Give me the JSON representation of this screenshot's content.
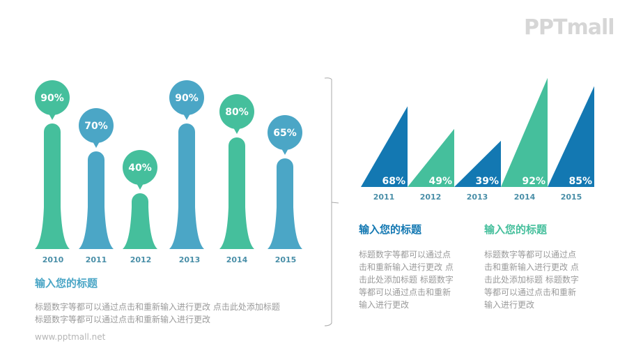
{
  "logo": {
    "text": "PPTmall"
  },
  "footer": {
    "url": "www.pptmall.net"
  },
  "colors": {
    "teal": "#45bf9c",
    "blue": "#4ba6c6",
    "dark_blue": "#1378b2",
    "grey_text": "#9a9a9a",
    "year_text": "#4a8fa8"
  },
  "left_panel": {
    "title": "输入您的标题",
    "body_lines": [
      "标题数字等都可以通过点击和重新输入进行更改 点击此处添加标题",
      "标题数字等都可以通过点击和重新输入进行更改"
    ]
  },
  "right_panel": {
    "blocks": [
      {
        "title": "输入您的标题",
        "body_lines": [
          "标题数字等都可以通过点",
          "击和重新输入进行更改 点",
          "击此处添加标题 标题数字",
          "等都可以通过点击和重新",
          "输入进行更改"
        ]
      },
      {
        "title": "输入您的标题",
        "body_lines": [
          "标题数字等都可以通过点",
          "击和重新输入进行更改 点",
          "击此处添加标题 标题数字",
          "等都可以通过点击和重新",
          "输入进行更改"
        ]
      }
    ]
  },
  "chart_data": [
    {
      "type": "bar",
      "title": "",
      "categories": [
        "2010",
        "2011",
        "2012",
        "2013",
        "2014",
        "2015"
      ],
      "values": [
        90,
        70,
        40,
        90,
        80,
        65
      ],
      "labels": [
        "90%",
        "70%",
        "40%",
        "90%",
        "80%",
        "65%"
      ],
      "colors": [
        "#45bf9c",
        "#4ba6c6",
        "#45bf9c",
        "#4ba6c6",
        "#45bf9c",
        "#4ba6c6"
      ],
      "xlabel": "",
      "ylabel": "",
      "ylim": [
        0,
        100
      ],
      "grid": false,
      "legend": "none"
    },
    {
      "type": "bar",
      "title": "",
      "categories": [
        "2011",
        "2012",
        "2013",
        "2014",
        "2015"
      ],
      "values": [
        68,
        49,
        39,
        92,
        85
      ],
      "labels": [
        "68%",
        "49%",
        "39%",
        "92%",
        "85%"
      ],
      "colors": [
        "#1378b2",
        "#45bf9c",
        "#1378b2",
        "#45bf9c",
        "#1378b2"
      ],
      "xlabel": "",
      "ylabel": "",
      "ylim": [
        0,
        100
      ],
      "grid": false,
      "legend": "none"
    }
  ]
}
